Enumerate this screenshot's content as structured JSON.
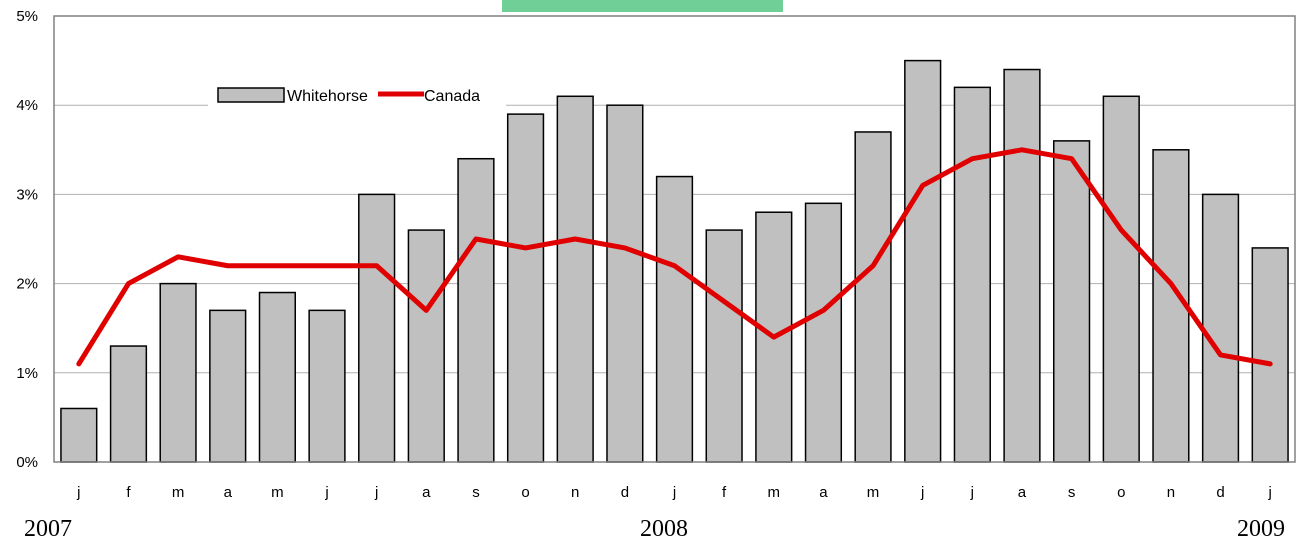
{
  "chart_data": {
    "type": "bar",
    "categories": [
      "j",
      "f",
      "m",
      "a",
      "m",
      "j",
      "j",
      "a",
      "s",
      "o",
      "n",
      "d",
      "j",
      "f",
      "m",
      "a",
      "m",
      "j",
      "j",
      "a",
      "s",
      "o",
      "n",
      "d",
      "j"
    ],
    "series": [
      {
        "name": "Whitehorse",
        "type": "bar",
        "values": [
          0.6,
          1.3,
          2.0,
          1.7,
          1.9,
          1.7,
          3.0,
          2.6,
          3.4,
          3.9,
          4.1,
          4.0,
          3.2,
          2.6,
          2.8,
          2.9,
          3.7,
          4.5,
          4.2,
          4.4,
          3.6,
          4.1,
          3.5,
          3.0,
          2.4
        ]
      },
      {
        "name": "Canada",
        "type": "line",
        "values": [
          1.1,
          2.0,
          2.3,
          2.2,
          2.2,
          2.2,
          2.2,
          1.7,
          2.5,
          2.4,
          2.5,
          2.4,
          2.2,
          1.8,
          1.4,
          1.7,
          2.2,
          3.1,
          3.4,
          3.5,
          3.4,
          2.6,
          2.0,
          1.2,
          1.1
        ]
      }
    ],
    "ylim": [
      0,
      5
    ],
    "yticks": [
      "0%",
      "1%",
      "2%",
      "3%",
      "4%",
      "5%"
    ],
    "year_labels": [
      "2007",
      "2008",
      "2009"
    ],
    "legend_position": "top-left",
    "grid": true,
    "colors": {
      "bar_fill": "#c0c0c0",
      "bar_stroke": "#000000",
      "line": "#e00000",
      "grid": "#b0b0b0",
      "title_box": "#6fcf97"
    }
  }
}
